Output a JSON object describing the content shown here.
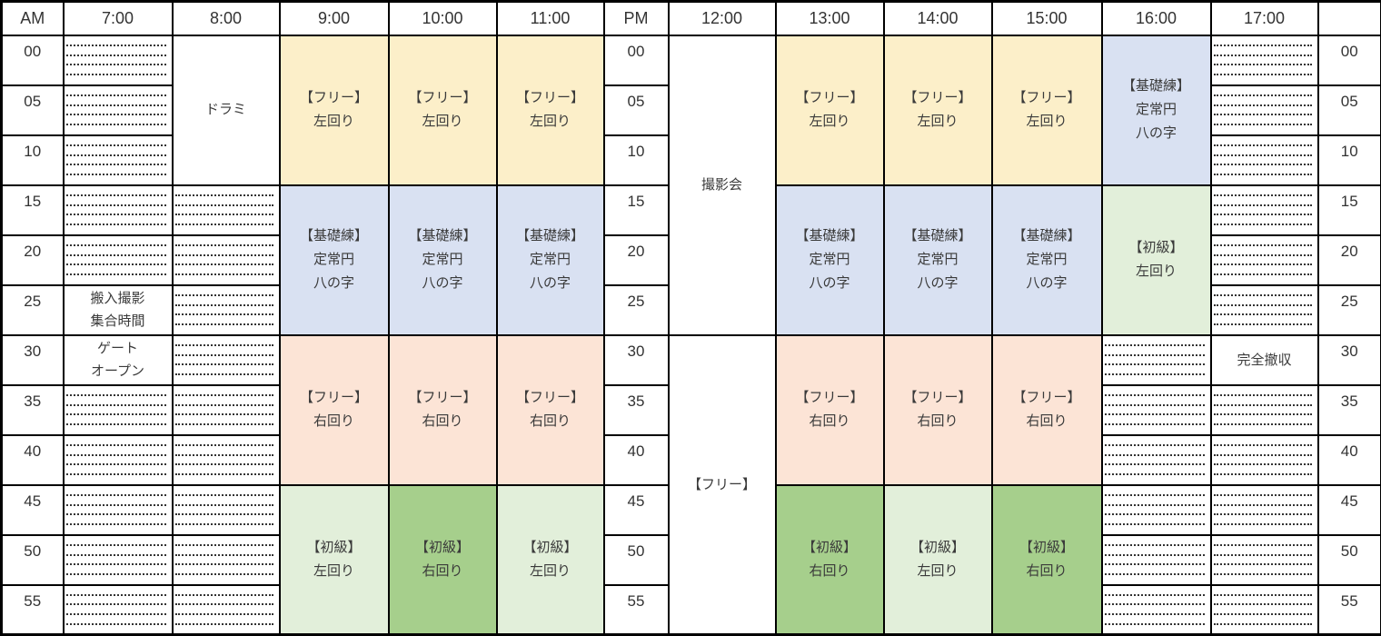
{
  "palette": {
    "yellow": "#FCEFC9",
    "blue": "#D9E1F2",
    "pink": "#FCE4D6",
    "green_light": "#E2EFDA",
    "green_dark": "#A6CF8C",
    "grid": "#000000",
    "text": "#3A3A3A",
    "hatch_dot": "#333333"
  },
  "schedule": {
    "left_header": "AM",
    "mid_header": "PM",
    "right_header": "",
    "am_hours": [
      "7:00",
      "8:00",
      "9:00",
      "10:00",
      "11:00"
    ],
    "pm_hours": [
      "12:00",
      "13:00",
      "14:00",
      "15:00",
      "16:00",
      "17:00"
    ],
    "minute_labels": [
      "00",
      "05",
      "10",
      "15",
      "20",
      "25",
      "30",
      "35",
      "40",
      "45",
      "50",
      "55"
    ],
    "columns": [
      {
        "hour": "7:00",
        "hatch_rows": [
          0,
          1,
          2,
          3,
          4,
          7,
          8,
          9,
          10,
          11
        ],
        "blocks": [
          {
            "row": 5,
            "span": 1,
            "style": "white",
            "lines": [
              "搬入撮影",
              "集合時間"
            ]
          },
          {
            "row": 6,
            "span": 1,
            "style": "white",
            "lines": [
              "ゲート",
              "オープン"
            ]
          }
        ]
      },
      {
        "hour": "8:00",
        "hatch_rows": [
          3,
          4,
          5,
          6,
          7,
          8,
          9,
          10,
          11
        ],
        "blocks": [
          {
            "row": 0,
            "span": 3,
            "style": "white",
            "lines": [
              "ドラミ"
            ]
          }
        ]
      },
      {
        "hour": "9:00",
        "hatch_rows": [],
        "blocks": [
          {
            "row": 0,
            "span": 3,
            "style": "yellow",
            "lines": [
              "【フリー】",
              "左回り"
            ]
          },
          {
            "row": 3,
            "span": 3,
            "style": "blue",
            "lines": [
              "【基礎練】",
              "定常円",
              "八の字"
            ]
          },
          {
            "row": 6,
            "span": 3,
            "style": "pink",
            "lines": [
              "【フリー】",
              "右回り"
            ]
          },
          {
            "row": 9,
            "span": 3,
            "style": "green_light",
            "lines": [
              "【初級】",
              "左回り"
            ]
          }
        ]
      },
      {
        "hour": "10:00",
        "hatch_rows": [],
        "blocks": [
          {
            "row": 0,
            "span": 3,
            "style": "yellow",
            "lines": [
              "【フリー】",
              "左回り"
            ]
          },
          {
            "row": 3,
            "span": 3,
            "style": "blue",
            "lines": [
              "【基礎練】",
              "定常円",
              "八の字"
            ]
          },
          {
            "row": 6,
            "span": 3,
            "style": "pink",
            "lines": [
              "【フリー】",
              "右回り"
            ]
          },
          {
            "row": 9,
            "span": 3,
            "style": "green_dark",
            "lines": [
              "【初級】",
              "右回り"
            ]
          }
        ]
      },
      {
        "hour": "11:00",
        "hatch_rows": [],
        "blocks": [
          {
            "row": 0,
            "span": 3,
            "style": "yellow",
            "lines": [
              "【フリー】",
              "左回り"
            ]
          },
          {
            "row": 3,
            "span": 3,
            "style": "blue",
            "lines": [
              "【基礎練】",
              "定常円",
              "八の字"
            ]
          },
          {
            "row": 6,
            "span": 3,
            "style": "pink",
            "lines": [
              "【フリー】",
              "右回り"
            ]
          },
          {
            "row": 9,
            "span": 3,
            "style": "green_light",
            "lines": [
              "【初級】",
              "左回り"
            ]
          }
        ]
      },
      {
        "hour": "12:00",
        "hatch_rows": [],
        "blocks": [
          {
            "row": 0,
            "span": 6,
            "style": "white",
            "lines": [
              "撮影会"
            ]
          },
          {
            "row": 6,
            "span": 6,
            "style": "white",
            "lines": [
              "【フリー】"
            ]
          }
        ]
      },
      {
        "hour": "13:00",
        "hatch_rows": [],
        "blocks": [
          {
            "row": 0,
            "span": 3,
            "style": "yellow",
            "lines": [
              "【フリー】",
              "左回り"
            ]
          },
          {
            "row": 3,
            "span": 3,
            "style": "blue",
            "lines": [
              "【基礎練】",
              "定常円",
              "八の字"
            ]
          },
          {
            "row": 6,
            "span": 3,
            "style": "pink",
            "lines": [
              "【フリー】",
              "右回り"
            ]
          },
          {
            "row": 9,
            "span": 3,
            "style": "green_dark",
            "lines": [
              "【初級】",
              "右回り"
            ]
          }
        ]
      },
      {
        "hour": "14:00",
        "hatch_rows": [],
        "blocks": [
          {
            "row": 0,
            "span": 3,
            "style": "yellow",
            "lines": [
              "【フリー】",
              "左回り"
            ]
          },
          {
            "row": 3,
            "span": 3,
            "style": "blue",
            "lines": [
              "【基礎練】",
              "定常円",
              "八の字"
            ]
          },
          {
            "row": 6,
            "span": 3,
            "style": "pink",
            "lines": [
              "【フリー】",
              "右回り"
            ]
          },
          {
            "row": 9,
            "span": 3,
            "style": "green_light",
            "lines": [
              "【初級】",
              "左回り"
            ]
          }
        ]
      },
      {
        "hour": "15:00",
        "hatch_rows": [],
        "blocks": [
          {
            "row": 0,
            "span": 3,
            "style": "yellow",
            "lines": [
              "【フリー】",
              "左回り"
            ]
          },
          {
            "row": 3,
            "span": 3,
            "style": "blue",
            "lines": [
              "【基礎練】",
              "定常円",
              "八の字"
            ]
          },
          {
            "row": 6,
            "span": 3,
            "style": "pink",
            "lines": [
              "【フリー】",
              "右回り"
            ]
          },
          {
            "row": 9,
            "span": 3,
            "style": "green_dark",
            "lines": [
              "【初級】",
              "右回り"
            ]
          }
        ]
      },
      {
        "hour": "16:00",
        "hatch_rows": [
          6,
          7,
          8,
          9,
          10,
          11
        ],
        "blocks": [
          {
            "row": 0,
            "span": 3,
            "style": "blue",
            "lines": [
              "【基礎練】",
              "定常円",
              "八の字"
            ]
          },
          {
            "row": 3,
            "span": 3,
            "style": "green_light",
            "lines": [
              "【初級】",
              "左回り"
            ]
          }
        ]
      },
      {
        "hour": "17:00",
        "hatch_rows": [
          0,
          1,
          2,
          3,
          4,
          5,
          7,
          8,
          9,
          10,
          11
        ],
        "blocks": [
          {
            "row": 6,
            "span": 1,
            "style": "white",
            "lines": [
              "完全撤収"
            ]
          }
        ]
      }
    ]
  }
}
